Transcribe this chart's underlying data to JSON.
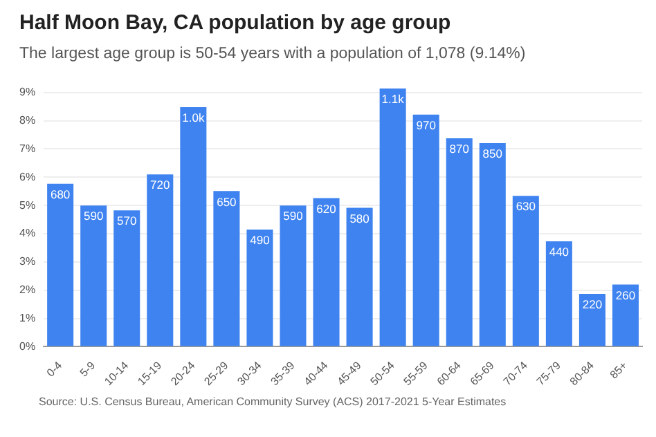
{
  "chart_data": {
    "type": "bar",
    "title": "Half Moon Bay, CA population by age group",
    "subtitle": "The largest age group is 50-54 years with a population of 1,078 (9.14%)",
    "categories": [
      "0-4",
      "5-9",
      "10-14",
      "15-19",
      "20-24",
      "25-29",
      "30-34",
      "35-39",
      "40-44",
      "45-49",
      "50-54",
      "55-59",
      "60-64",
      "65-69",
      "70-74",
      "75-79",
      "80-84",
      "85+"
    ],
    "values": [
      5.77,
      5.0,
      4.83,
      6.1,
      8.48,
      5.51,
      4.15,
      5.0,
      5.26,
      4.92,
      9.14,
      8.22,
      7.38,
      7.21,
      5.34,
      3.73,
      1.87,
      2.2
    ],
    "color": "#3f83f0",
    "ylim": [
      0,
      9.2
    ],
    "yticks": [
      {
        "value": 0,
        "label": "0%"
      },
      {
        "value": 1,
        "label": "1%"
      },
      {
        "value": 2,
        "label": "2%"
      },
      {
        "value": 3,
        "label": "3%"
      },
      {
        "value": 4,
        "label": "4%"
      },
      {
        "value": 5,
        "label": "5%"
      },
      {
        "value": 6,
        "label": "6%"
      },
      {
        "value": 7,
        "label": "7%"
      },
      {
        "value": 8,
        "label": "8%"
      },
      {
        "value": 9,
        "label": "9%"
      }
    ],
    "grid": "y",
    "annotations": [
      {
        "text": "680",
        "x": "0-4",
        "y": 5.77
      },
      {
        "text": "590",
        "x": "5-9",
        "y": 5.0
      },
      {
        "text": "570",
        "x": "10-14",
        "y": 4.83
      },
      {
        "text": "720",
        "x": "15-19",
        "y": 6.1
      },
      {
        "text": "1.0k",
        "x": "20-24",
        "y": 8.48
      },
      {
        "text": "650",
        "x": "25-29",
        "y": 5.51
      },
      {
        "text": "490",
        "x": "30-34",
        "y": 4.15
      },
      {
        "text": "590",
        "x": "35-39",
        "y": 5.0
      },
      {
        "text": "620",
        "x": "40-44",
        "y": 5.26
      },
      {
        "text": "580",
        "x": "45-49",
        "y": 4.92
      },
      {
        "text": "1.1k",
        "x": "50-54",
        "y": 9.14
      },
      {
        "text": "970",
        "x": "55-59",
        "y": 8.22
      },
      {
        "text": "870",
        "x": "60-64",
        "y": 7.38
      },
      {
        "text": "850",
        "x": "65-69",
        "y": 7.21
      },
      {
        "text": "630",
        "x": "70-74",
        "y": 5.34
      },
      {
        "text": "440",
        "x": "75-79",
        "y": 3.73
      },
      {
        "text": "220",
        "x": "80-84",
        "y": 1.87
      },
      {
        "text": "260",
        "x": "85+",
        "y": 2.2
      },
      "Source: U.S. Census Bureau, American Community Survey (ACS) 2017-2021 5-Year Estimates"
    ]
  }
}
